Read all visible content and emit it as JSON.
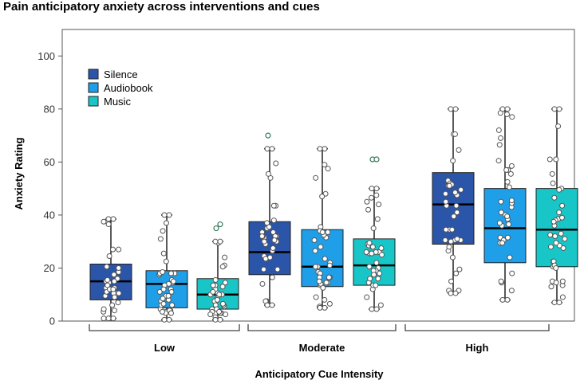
{
  "chart_data": {
    "type": "box",
    "title": "Pain anticipatory anxiety across interventions and cues",
    "xlabel": "Anticipatory Cue Intensity",
    "ylabel": "Anxiety Rating",
    "ylim": [
      0,
      110
    ],
    "yticks": [
      0,
      20,
      40,
      60,
      80,
      100
    ],
    "categories": [
      "Low",
      "Moderate",
      "High"
    ],
    "legend_position": "top-left",
    "series": [
      {
        "name": "Silence",
        "color": "#2B55A8",
        "boxes": [
          {
            "min": 1,
            "q1": 8,
            "median": 15,
            "q3": 21.5,
            "max": 38.5,
            "outliers": []
          },
          {
            "min": 6,
            "q1": 17.5,
            "median": 26,
            "q3": 37.5,
            "max": 65,
            "outliers": [
              70
            ]
          },
          {
            "min": 10.5,
            "q1": 29,
            "median": 44,
            "q3": 56,
            "max": 80,
            "outliers": []
          }
        ]
      },
      {
        "name": "Audiobook",
        "color": "#1E9FE8",
        "boxes": [
          {
            "min": 0.5,
            "q1": 5,
            "median": 14,
            "q3": 19,
            "max": 40,
            "outliers": []
          },
          {
            "min": 5,
            "q1": 13,
            "median": 20.5,
            "q3": 34.5,
            "max": 65,
            "outliers": []
          },
          {
            "min": 8,
            "q1": 22,
            "median": 35,
            "q3": 50,
            "max": 80,
            "outliers": []
          }
        ]
      },
      {
        "name": "Music",
        "color": "#18C6C8",
        "boxes": [
          {
            "min": 0.5,
            "q1": 4.5,
            "median": 10,
            "q3": 16,
            "max": 30,
            "outliers": [
              35,
              36.5
            ]
          },
          {
            "min": 4.5,
            "q1": 13.5,
            "median": 21,
            "q3": 31,
            "max": 50,
            "outliers": [
              61,
              61
            ]
          },
          {
            "min": 7,
            "q1": 20.5,
            "median": 34.5,
            "q3": 50,
            "max": 80,
            "outliers": []
          }
        ]
      }
    ]
  }
}
